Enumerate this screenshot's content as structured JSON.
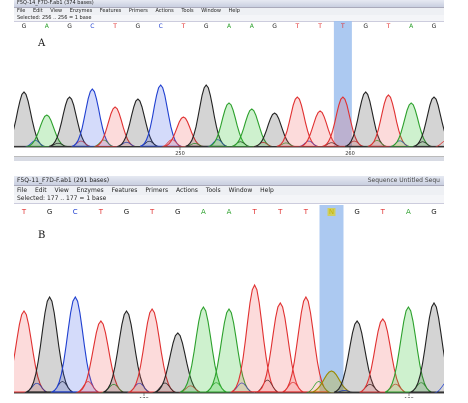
{
  "panelA": {
    "label": "A",
    "window_title": "F5Q-14_F7D-F.ab1  (374 bases)",
    "menu": [
      "File",
      "Edit",
      "View",
      "Enzymes",
      "Features",
      "Primers",
      "Actions",
      "Tools",
      "Window",
      "Help"
    ],
    "selection": "Selected: 256 .. 256 = 1 base",
    "bases": [
      "G",
      "A",
      "G",
      "C",
      "T",
      "G",
      "C",
      "T",
      "G",
      "A",
      "A",
      "G",
      "T",
      "T",
      "T",
      "G",
      "T",
      "A",
      "G"
    ],
    "ruler_labels": [
      "250",
      "260"
    ]
  },
  "panelB": {
    "label": "B",
    "window_title": "F5Q-11_F7D-F.ab1  (291 bases)",
    "window_controls": "Sequence  Untitled  Sequ",
    "menu": [
      "File",
      "Edit",
      "View",
      "Enzymes",
      "Features",
      "Primers",
      "Actions",
      "Tools",
      "Window",
      "Help"
    ],
    "selection": "Selected: 177 .. 177 = 1 base",
    "bases": [
      "T",
      "G",
      "C",
      "T",
      "G",
      "T",
      "G",
      "A",
      "A",
      "T",
      "T",
      "T",
      "N",
      "G",
      "T",
      "A",
      "G"
    ],
    "ruler_labels": [
      "170",
      "180"
    ]
  }
}
